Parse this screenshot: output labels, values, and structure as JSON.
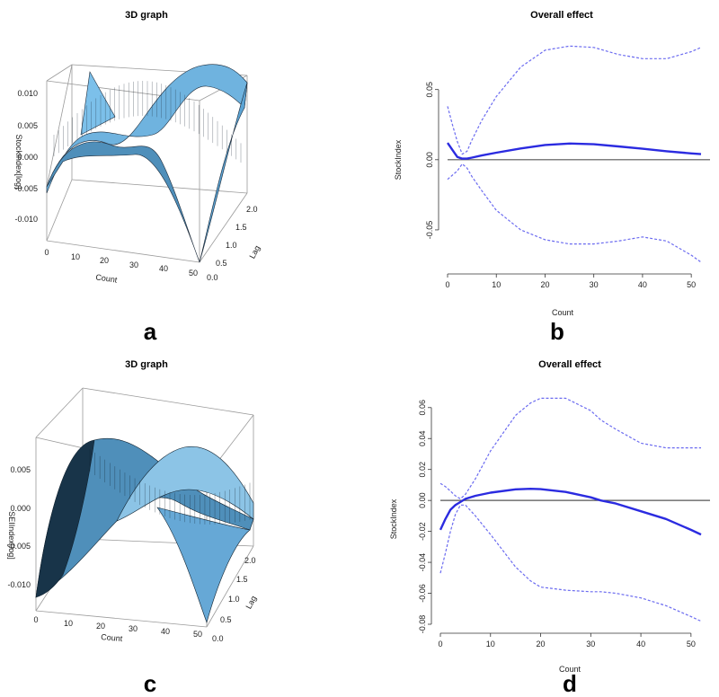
{
  "panels": [
    {
      "letter": "a",
      "chart_data": {
        "type": "surface",
        "title": "3D graph",
        "xlabel": "Count",
        "ylabel": "Lag",
        "zlabel": "Stockindex[log]",
        "xlim": [
          0,
          52
        ],
        "ylim": [
          0,
          2
        ],
        "zlim": [
          -0.012,
          0.012
        ],
        "x_ticks": [
          "0",
          "10",
          "20",
          "30",
          "40",
          "50"
        ],
        "y_ticks": [
          "0.0",
          "0.5",
          "1.0",
          "1.5",
          "2.0"
        ],
        "z_ticks": [
          "0.010",
          "0.005",
          "0.000",
          "-0.005",
          "-0.010"
        ],
        "surface_color": "#5aa4d8"
      }
    },
    {
      "letter": "b",
      "chart_data": {
        "type": "line",
        "title": "Overall effect",
        "xlabel": "Count",
        "ylabel": "StockIndex",
        "xlim": [
          0,
          52
        ],
        "ylim": [
          -0.075,
          0.085
        ],
        "x_ticks": [
          0,
          10,
          20,
          30,
          40,
          50
        ],
        "y_ticks": [
          "0.05",
          "0.00",
          "-0.05"
        ],
        "y_tick_values": [
          0.05,
          0.0,
          -0.05
        ],
        "reference_line": 0,
        "x": [
          0,
          1,
          2,
          3,
          4,
          5,
          7,
          10,
          15,
          20,
          25,
          30,
          35,
          40,
          45,
          50,
          52
        ],
        "series": [
          {
            "role": "estimate",
            "values": [
              0.012,
              0.007,
              0.002,
              0.0008,
              0.0008,
              0.0015,
              0.003,
              0.005,
              0.008,
              0.0105,
              0.0115,
              0.011,
              0.0095,
              0.0078,
              0.006,
              0.0045,
              0.004
            ]
          },
          {
            "role": "upper",
            "values": [
              0.038,
              0.025,
              0.013,
              0.004,
              0.006,
              0.014,
              0.028,
              0.045,
              0.066,
              0.078,
              0.081,
              0.08,
              0.075,
              0.072,
              0.072,
              0.077,
              0.08
            ]
          },
          {
            "role": "lower",
            "values": [
              -0.014,
              -0.011,
              -0.008,
              -0.003,
              -0.006,
              -0.012,
              -0.022,
              -0.036,
              -0.05,
              -0.057,
              -0.06,
              -0.06,
              -0.058,
              -0.055,
              -0.058,
              -0.068,
              -0.073
            ]
          }
        ],
        "line_color": "#2b2be0",
        "band_color": "#6b6bf0"
      }
    },
    {
      "letter": "c",
      "chart_data": {
        "type": "surface",
        "title": "3D graph",
        "xlabel": "Count",
        "ylabel": "Lag",
        "zlabel": "SEIIndex[log]",
        "xlim": [
          0,
          52
        ],
        "ylim": [
          0,
          2
        ],
        "zlim": [
          -0.012,
          0.008
        ],
        "x_ticks": [
          "0",
          "10",
          "20",
          "30",
          "40",
          "50"
        ],
        "y_ticks": [
          "0.0",
          "0.5",
          "1.0",
          "1.5",
          "2.0"
        ],
        "z_ticks": [
          "0.005",
          "0.000",
          "-0.005",
          "-0.010"
        ],
        "surface_color": "#4a8fc4"
      }
    },
    {
      "letter": "d",
      "chart_data": {
        "type": "line",
        "title": "Overall effect",
        "xlabel": "Count",
        "ylabel": "StockIndex",
        "xlim": [
          0,
          52
        ],
        "ylim": [
          -0.08,
          0.068
        ],
        "x_ticks": [
          0,
          10,
          20,
          30,
          40,
          50
        ],
        "y_ticks": [
          "0.06",
          "0.04",
          "0.02",
          "0.00",
          "-0.02",
          "-0.04",
          "-0.06",
          "-0.08"
        ],
        "y_tick_values": [
          0.06,
          0.04,
          0.02,
          0.0,
          -0.02,
          -0.04,
          -0.06,
          -0.08
        ],
        "reference_line": 0,
        "x": [
          0,
          1,
          2,
          3,
          4,
          5,
          7,
          10,
          15,
          18,
          20,
          25,
          30,
          32,
          35,
          40,
          45,
          50,
          52
        ],
        "series": [
          {
            "role": "estimate",
            "values": [
              -0.019,
              -0.012,
              -0.006,
              -0.003,
              -0.001,
              0.001,
              0.003,
              0.005,
              0.0072,
              0.0075,
              0.0073,
              0.0055,
              0.002,
              0.0,
              -0.002,
              -0.007,
              -0.012,
              -0.019,
              -0.022
            ]
          },
          {
            "role": "upper",
            "values": [
              0.011,
              0.009,
              0.006,
              0.003,
              0.001,
              0.004,
              0.014,
              0.032,
              0.055,
              0.063,
              0.066,
              0.066,
              0.058,
              0.052,
              0.046,
              0.037,
              0.034,
              0.034,
              0.034
            ]
          },
          {
            "role": "lower",
            "values": [
              -0.047,
              -0.034,
              -0.02,
              -0.009,
              -0.003,
              -0.003,
              -0.01,
              -0.022,
              -0.043,
              -0.052,
              -0.056,
              -0.058,
              -0.059,
              -0.059,
              -0.06,
              -0.063,
              -0.068,
              -0.075,
              -0.078
            ]
          }
        ],
        "line_color": "#2b2be0",
        "band_color": "#6b6bf0"
      }
    }
  ]
}
